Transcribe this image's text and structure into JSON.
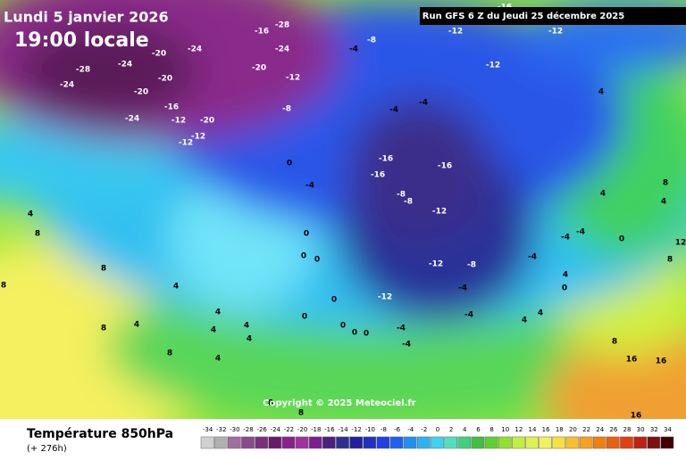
{
  "header": {
    "date": "Lundi 5 janvier 2026",
    "time": "19:00 locale",
    "run": "Run GFS 6 Z du Jeudi 25 décembre 2025"
  },
  "map": {
    "copyright": "Copyright © 2025 Meteociel.fr",
    "labels": [
      "-28",
      "-24",
      "-20",
      "-24",
      "-24",
      "-20",
      "-20",
      "-16",
      "-12",
      "-24",
      "-20",
      "-12",
      "-12",
      "-16",
      "-28",
      "-24",
      "-20",
      "-12",
      "-8",
      "-4",
      "-8",
      "-12",
      "-16",
      "-12",
      "-12",
      "-4",
      "-4",
      "-16",
      "-16",
      "-16",
      "-8",
      "-8",
      "-12",
      "-12",
      "-8",
      "-4",
      "0",
      "0",
      "0",
      "0",
      "-12",
      "-4",
      "-4",
      "-4",
      "-4",
      "0",
      "0",
      "0",
      "0",
      "0",
      "4",
      "8",
      "4",
      "4",
      "-4",
      "-4",
      "-4",
      "0",
      "8",
      "12",
      "4",
      "8",
      "8",
      "4",
      "4",
      "4",
      "4",
      "4",
      "8",
      "4",
      "8",
      "4",
      "8",
      "8",
      "8",
      "16",
      "16",
      "16",
      "4",
      "4",
      "0",
      "4",
      "8"
    ]
  },
  "footer": {
    "title": "Température 850hPa",
    "lead": "(+ 276h)"
  },
  "legend": {
    "values": [
      -34,
      -32,
      -30,
      -28,
      -26,
      -24,
      -22,
      -20,
      -18,
      -16,
      -14,
      -12,
      -10,
      -8,
      -6,
      -4,
      -2,
      0,
      2,
      4,
      6,
      8,
      10,
      12,
      14,
      16,
      18,
      20,
      22,
      24,
      26,
      28,
      30,
      32,
      34
    ],
    "colors": [
      "#d0d0d0",
      "#b0b0b0",
      "#a070a0",
      "#8a4a8a",
      "#7a307a",
      "#6a1a6a",
      "#8a208a",
      "#a030a0",
      "#7a2090",
      "#4a2080",
      "#303090",
      "#2020a0",
      "#2030c0",
      "#2040e0",
      "#2060f0",
      "#2090f0",
      "#30b0f0",
      "#40d0f0",
      "#50e0c0",
      "#40d080",
      "#40c040",
      "#60d030",
      "#90e030",
      "#c0f040",
      "#e0f050",
      "#f0f060",
      "#f8e040",
      "#f8c030",
      "#f8a020",
      "#f08010",
      "#e86010",
      "#e04010",
      "#c02010",
      "#801010",
      "#400000"
    ]
  }
}
